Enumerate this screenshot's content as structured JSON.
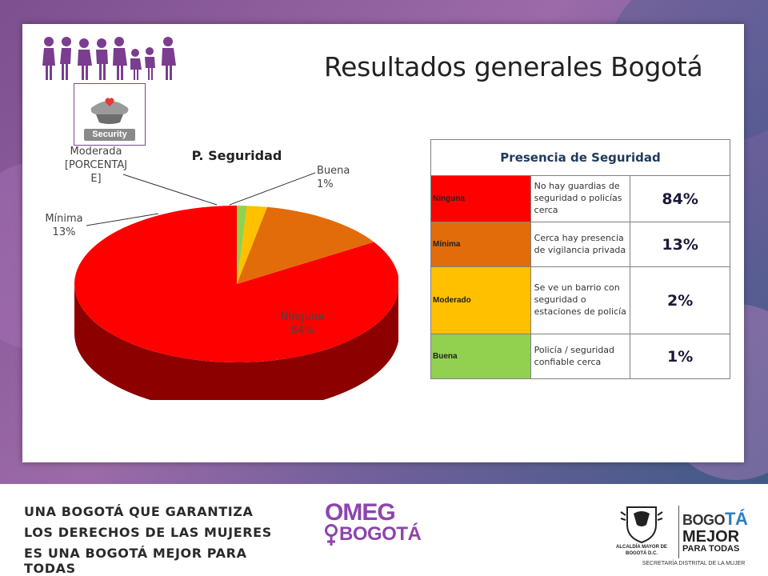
{
  "slide": {
    "title": "Resultados generales Bogotá",
    "icon_label": "Security"
  },
  "chart_data": {
    "type": "pie",
    "title": "P. Seguridad",
    "style": "3d",
    "slices": [
      {
        "label": "Ninguna",
        "value": 84,
        "display": "84%",
        "color": "#ff0000"
      },
      {
        "label": "Mínima",
        "value": 13,
        "display": "13%",
        "color": "#e36c0a"
      },
      {
        "label": "Moderada",
        "value": 2,
        "display": "[PORCENTAJE]",
        "color": "#ffc000"
      },
      {
        "label": "Buena",
        "value": 1,
        "display": "1%",
        "color": "#92d050"
      }
    ]
  },
  "table": {
    "title": "Presencia de Seguridad",
    "rows": [
      {
        "level": "Ninguna",
        "description": "No hay guardias de seguridad o policías cerca",
        "percent": "84%",
        "color": "#ff0000"
      },
      {
        "level": "Mínima",
        "description": "Cerca hay presencia de vigilancia privada",
        "percent": "13%",
        "color": "#e36c0a"
      },
      {
        "level": "Moderado",
        "description": "Se ve un barrio con seguridad o estaciones de policía",
        "percent": "2%",
        "color": "#ffc000"
      },
      {
        "level": "Buena",
        "description": "Policía / seguridad confiable cerca",
        "percent": "1%",
        "color": "#92d050"
      }
    ]
  },
  "footer": {
    "slogan_line1": "UNA BOGOTÁ QUE GARANTIZA",
    "slogan_line2": "LOS DERECHOS DE LAS MUJERES",
    "slogan_line3": "ES UNA BOGOTÁ MEJOR PARA TODAS",
    "omeg_top": "OMEG",
    "omeg_bottom": "BOGOTÁ",
    "alcaldia": "ALCALDÍA MAYOR DE BOGOTÁ D.C.",
    "bogota_prefix": "BOGO",
    "bogota_suffix": "TÁ",
    "mejor": "MEJOR",
    "para_todas": "PARA TODAS",
    "secretaria": "SECRETARÍA DISTRITAL DE LA MUJER"
  },
  "colors": {
    "brand_purple": "#8e44ad"
  }
}
